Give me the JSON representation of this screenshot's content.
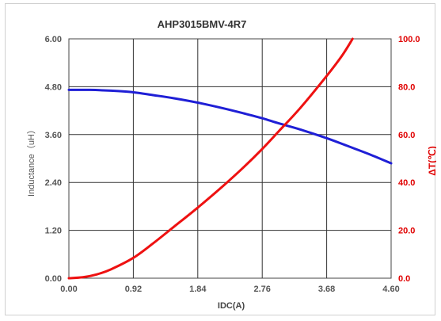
{
  "chart_data": {
    "type": "line",
    "title": "AHP3015BMV-4R7",
    "xlabel": "IDC(A)",
    "ylabel": "Inductance（uH）",
    "y2label": "ΔT(℃)",
    "xlim": [
      0,
      4.6
    ],
    "ylim": [
      0,
      6
    ],
    "y2lim": [
      0,
      100
    ],
    "x_ticks": [
      "0.00",
      "0.92",
      "1.84",
      "2.76",
      "3.68",
      "4.60"
    ],
    "y_ticks": [
      "0.00",
      "1.20",
      "2.40",
      "3.60",
      "4.80",
      "6.00"
    ],
    "y2_ticks": [
      "0.0",
      "20.0",
      "40.0",
      "60.0",
      "80.0",
      "100.0"
    ],
    "grid": true,
    "legend": "none",
    "series": [
      {
        "axis": "left",
        "color": "#1f1fd6",
        "x": [
          0,
          0.3,
          0.6,
          0.92,
          1.2,
          1.5,
          1.84,
          2.2,
          2.5,
          2.76,
          3.0,
          3.3,
          3.68,
          4.0,
          4.3,
          4.6
        ],
        "y": [
          4.72,
          4.72,
          4.7,
          4.66,
          4.59,
          4.51,
          4.4,
          4.26,
          4.13,
          4.01,
          3.88,
          3.73,
          3.51,
          3.3,
          3.1,
          2.88
        ]
      },
      {
        "axis": "right",
        "color": "#ee1111",
        "x": [
          0,
          0.2,
          0.4,
          0.6,
          0.92,
          1.2,
          1.5,
          1.84,
          2.2,
          2.5,
          2.76,
          3.0,
          3.3,
          3.68,
          3.9,
          4.05
        ],
        "y": [
          0,
          0.4,
          1.6,
          3.7,
          8.5,
          14.5,
          21.5,
          29.5,
          38.5,
          46.5,
          54,
          61.5,
          71,
          84.5,
          93,
          100
        ]
      }
    ]
  }
}
